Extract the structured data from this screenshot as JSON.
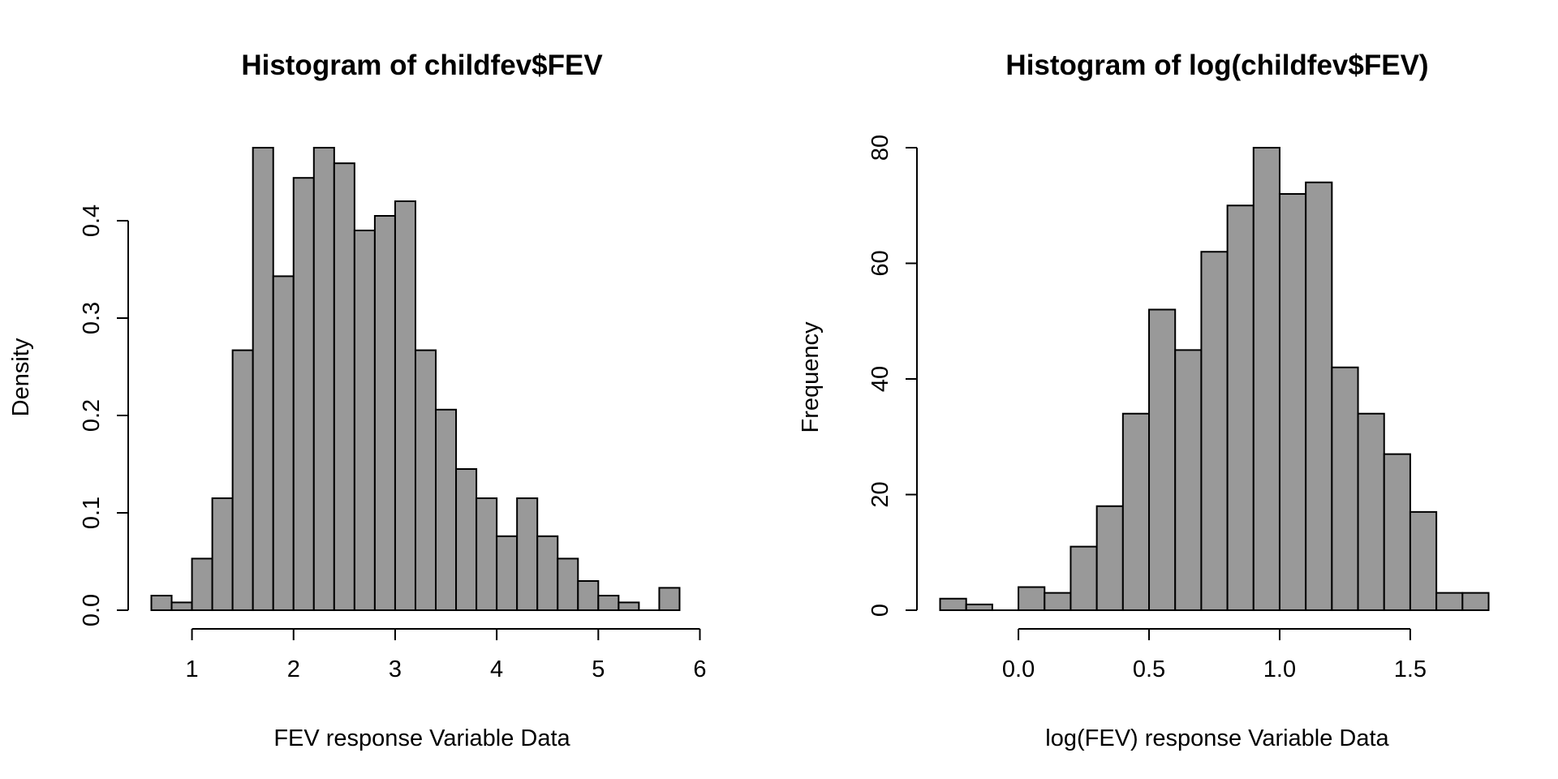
{
  "chart_data": [
    {
      "type": "bar",
      "subtype": "histogram",
      "title": "Histogram of childfev$FEV",
      "xlabel": "FEV response Variable Data",
      "ylabel": "Density",
      "bar_color": "#999999",
      "border_color": "#000000",
      "xlim": [
        0.6,
        6.0
      ],
      "ylim": [
        0,
        0.475
      ],
      "x_ticks": [
        1,
        2,
        3,
        4,
        5,
        6
      ],
      "x_tick_labels": [
        "1",
        "2",
        "3",
        "4",
        "5",
        "6"
      ],
      "y_ticks": [
        0,
        0.1,
        0.2,
        0.3,
        0.4
      ],
      "y_tick_labels": [
        "0.0",
        "0.1",
        "0.2",
        "0.3",
        "0.4"
      ],
      "bin_width": 0.2,
      "bins_start": [
        0.6,
        0.8,
        1.0,
        1.2,
        1.4,
        1.6,
        1.8,
        2.0,
        2.2,
        2.4,
        2.6,
        2.8,
        3.0,
        3.2,
        3.4,
        3.6,
        3.8,
        4.0,
        4.2,
        4.4,
        4.6,
        4.8,
        5.0,
        5.2,
        5.4,
        5.6
      ],
      "values": [
        0.015,
        0.008,
        0.053,
        0.115,
        0.267,
        0.475,
        0.343,
        0.444,
        0.475,
        0.459,
        0.39,
        0.405,
        0.42,
        0.267,
        0.206,
        0.145,
        0.115,
        0.076,
        0.115,
        0.076,
        0.053,
        0.03,
        0.015,
        0.008,
        0.0,
        0.023
      ]
    },
    {
      "type": "bar",
      "subtype": "histogram",
      "title": "Histogram of log(childfev$FEV)",
      "xlabel": "log(FEV) response Variable Data",
      "ylabel": "Frequency",
      "bar_color": "#999999",
      "border_color": "#000000",
      "xlim": [
        -0.3,
        1.8
      ],
      "ylim": [
        0,
        80
      ],
      "x_ticks": [
        0.0,
        0.5,
        1.0,
        1.5
      ],
      "x_tick_labels": [
        "0.0",
        "0.5",
        "1.0",
        "1.5"
      ],
      "y_ticks": [
        0,
        20,
        40,
        60,
        80
      ],
      "y_tick_labels": [
        "0",
        "20",
        "40",
        "60",
        "80"
      ],
      "bin_width": 0.1,
      "bins_start": [
        -0.3,
        -0.2,
        -0.1,
        0.0,
        0.1,
        0.2,
        0.3,
        0.4,
        0.5,
        0.6,
        0.7,
        0.8,
        0.9,
        1.0,
        1.1,
        1.2,
        1.3,
        1.4,
        1.5,
        1.6,
        1.7
      ],
      "values": [
        2,
        1,
        0,
        4,
        3,
        11,
        18,
        34,
        52,
        45,
        62,
        70,
        80,
        72,
        74,
        42,
        34,
        27,
        17,
        3,
        3
      ]
    }
  ]
}
